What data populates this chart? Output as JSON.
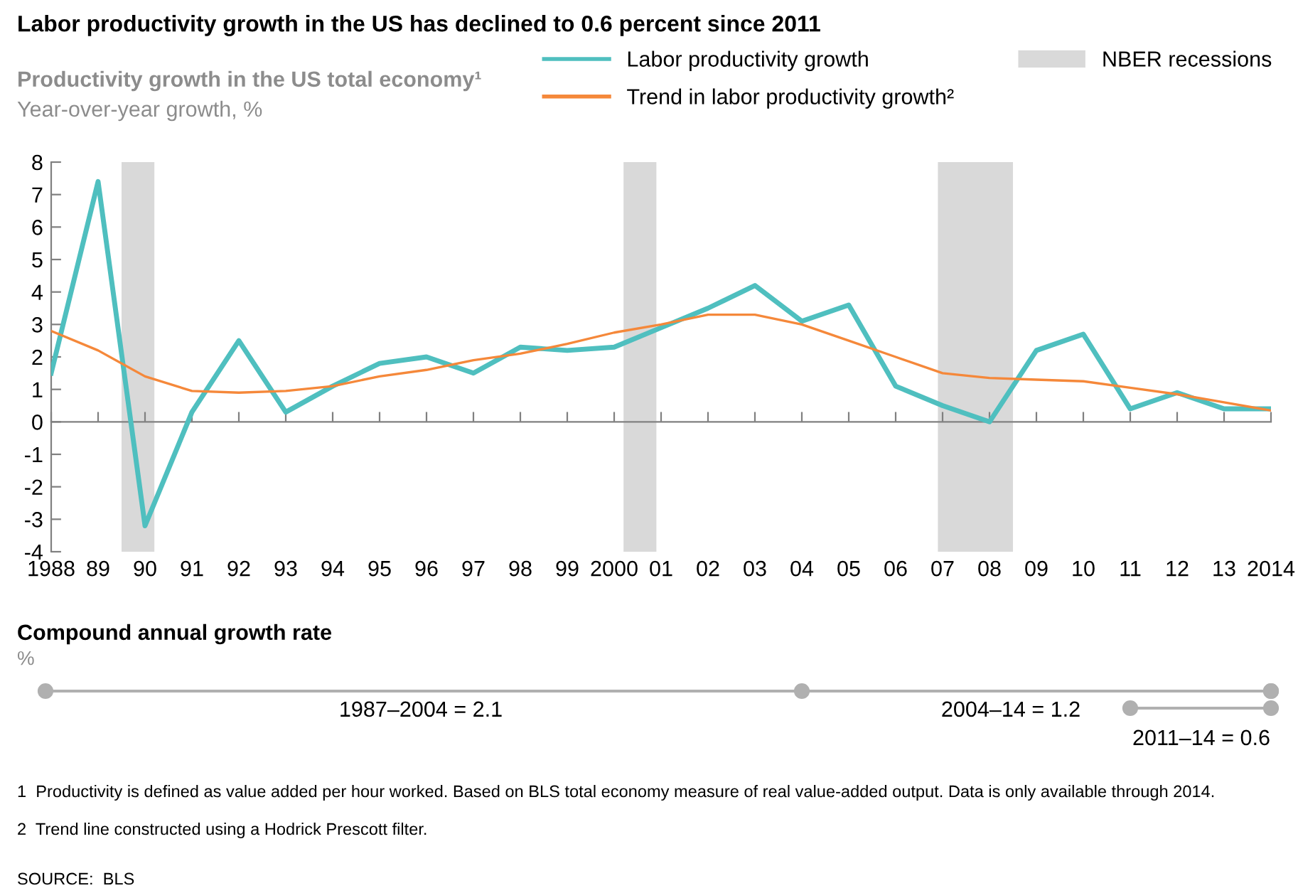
{
  "chart_data": {
    "type": "line",
    "title": "Labor productivity growth in the US has declined to 0.6 percent since 2011",
    "subtitle": "Productivity growth in the US total economy¹",
    "ylabel": "Year-over-year growth, %",
    "x": [
      1988,
      1989,
      1990,
      1991,
      1992,
      1993,
      1994,
      1995,
      1996,
      1997,
      1998,
      1999,
      2000,
      2001,
      2002,
      2003,
      2004,
      2005,
      2006,
      2007,
      2008,
      2009,
      2010,
      2011,
      2012,
      2013,
      2014
    ],
    "series": [
      {
        "name": "Labor productivity growth",
        "color": "#4fbfbf",
        "values": [
          1.5,
          7.4,
          -3.2,
          0.3,
          2.5,
          0.3,
          1.1,
          1.8,
          2.0,
          1.5,
          2.3,
          2.2,
          2.3,
          2.9,
          3.5,
          4.2,
          3.1,
          3.6,
          1.1,
          0.5,
          0.0,
          2.2,
          2.7,
          0.4,
          0.9,
          0.4,
          0.4
        ]
      },
      {
        "name": "Trend in labor productivity growth²",
        "color": "#f5883a",
        "values": [
          2.8,
          2.2,
          1.4,
          0.95,
          0.9,
          0.95,
          1.1,
          1.4,
          1.6,
          1.9,
          2.1,
          2.4,
          2.75,
          3.0,
          3.3,
          3.3,
          3.0,
          2.5,
          2.0,
          1.5,
          1.35,
          1.3,
          1.25,
          1.05,
          0.85,
          0.6,
          0.35
        ]
      }
    ],
    "bands": [
      {
        "axis": "x",
        "from": 1989.5,
        "to": 1990.2,
        "label": "NBER recessions",
        "color": "#d9d9d9"
      },
      {
        "axis": "x",
        "from": 2000.2,
        "to": 2000.9,
        "label": null,
        "color": "#d9d9d9"
      },
      {
        "axis": "x",
        "from": 2006.9,
        "to": 2008.5,
        "label": null,
        "color": "#d9d9d9"
      }
    ],
    "xlim": [
      1988,
      2014
    ],
    "xticks": [
      1988,
      {
        "value": 1989,
        "label": "89"
      },
      {
        "value": 1990,
        "label": "90"
      },
      {
        "value": 1991,
        "label": "91"
      },
      {
        "value": 1992,
        "label": "92"
      },
      {
        "value": 1993,
        "label": "93"
      },
      {
        "value": 1994,
        "label": "94"
      },
      {
        "value": 1995,
        "label": "95"
      },
      {
        "value": 1996,
        "label": "96"
      },
      {
        "value": 1997,
        "label": "97"
      },
      {
        "value": 1998,
        "label": "98"
      },
      {
        "value": 1999,
        "label": "99"
      },
      2000,
      {
        "value": 2001,
        "label": "01"
      },
      {
        "value": 2002,
        "label": "02"
      },
      {
        "value": 2003,
        "label": "03"
      },
      {
        "value": 2004,
        "label": "04"
      },
      {
        "value": 2005,
        "label": "05"
      },
      {
        "value": 2006,
        "label": "06"
      },
      {
        "value": 2007,
        "label": "07"
      },
      {
        "value": 2008,
        "label": "08"
      },
      {
        "value": 2009,
        "label": "09"
      },
      {
        "value": 2010,
        "label": "10"
      },
      {
        "value": 2011,
        "label": "11"
      },
      {
        "value": 2012,
        "label": "12"
      },
      {
        "value": 2013,
        "label": "13"
      },
      2014
    ],
    "ylim": [
      -4,
      8
    ],
    "yticks": [
      -4,
      -3,
      -2,
      -1,
      0,
      1,
      2,
      3,
      4,
      5,
      6,
      7,
      8
    ],
    "legend": "top right",
    "marker": "none",
    "line_style": "solid",
    "annotations": [
      "Compound annual growth rate",
      "%",
      "1987–2004 = 2.1",
      "2004–14 = 1.2",
      "2011–14 = 0.6",
      "1  Productivity is defined as value added per hour worked. Based on BLS total economy measure of real value-added output. Data is only available through 2014.",
      "2  Trend line constructed using a Hodrick Prescott filter.",
      "SOURCE:  BLS"
    ]
  }
}
